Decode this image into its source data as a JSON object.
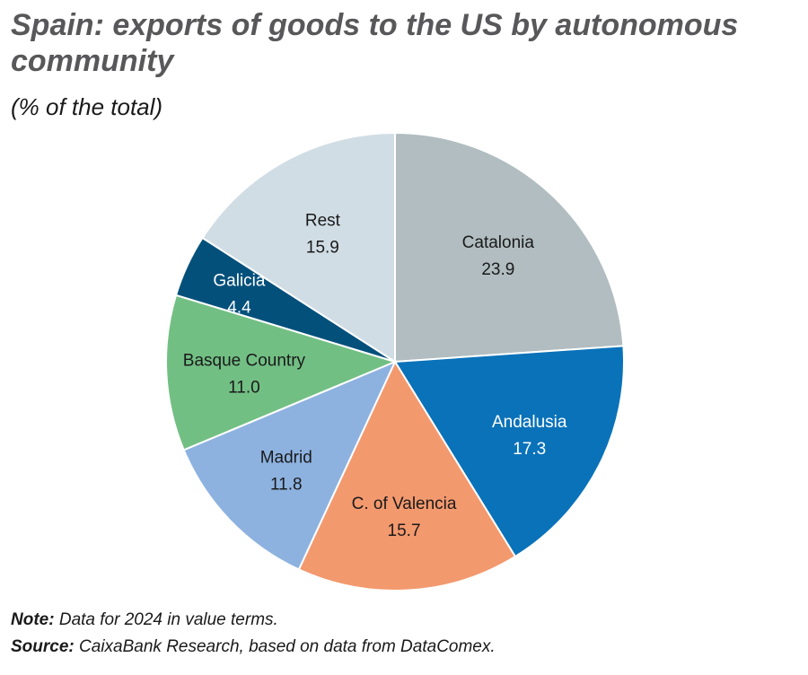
{
  "chart_data": {
    "type": "pie",
    "title": "Spain: exports of goods to the US by autonomous community",
    "subtitle": "(% of the total)",
    "start": "12 o'clock, clockwise",
    "slices": [
      {
        "label": "Catalonia",
        "value": 23.9,
        "color": "#b1bdc0",
        "text_color": "#1a1a1a"
      },
      {
        "label": "Andalusia",
        "value": 17.3,
        "color": "#0a72b9",
        "text_color": "#ffffff"
      },
      {
        "label": "C. of Valencia",
        "value": 15.7,
        "color": "#f3996e",
        "text_color": "#1a1a1a"
      },
      {
        "label": "Madrid",
        "value": 11.8,
        "color": "#8db2e0",
        "text_color": "#1a1a1a"
      },
      {
        "label": "Basque Country",
        "value": 11.0,
        "color": "#72bf84",
        "text_color": "#1a1a1a"
      },
      {
        "label": "Galicia",
        "value": 4.4,
        "color": "#03507b",
        "text_color": "#ffffff"
      },
      {
        "label": "Rest",
        "value": 15.9,
        "color": "#d1dde5",
        "text_color": "#1a1a1a"
      }
    ]
  },
  "notes": {
    "note_label": "Note:",
    "note_text": " Data for 2024 in value terms.",
    "source_label": "Source:",
    "source_text": " CaixaBank Research, based on data from DataComex."
  }
}
